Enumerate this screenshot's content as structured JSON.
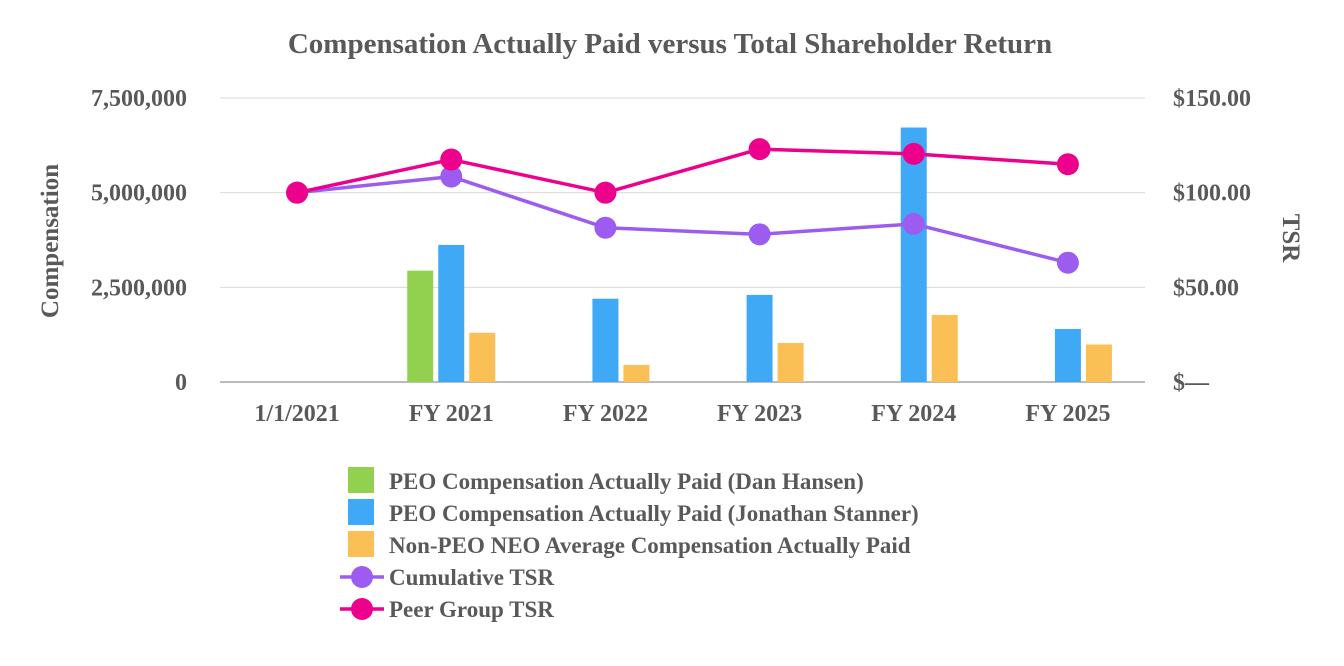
{
  "chart_data": {
    "type": "bar",
    "title": "Compensation Actually Paid versus Total Shareholder Return",
    "categories": [
      "1/1/2021",
      "FY 2021",
      "FY 2022",
      "FY 2023",
      "FY 2024",
      "FY 2025"
    ],
    "ylabel": "Compensation",
    "y2label": "TSR",
    "ylim": [
      0,
      7500000
    ],
    "y2lim": [
      0,
      150
    ],
    "yticks": [
      0,
      2500000,
      5000000,
      7500000
    ],
    "ytick_labels": [
      "0",
      "2,500,000",
      "5,000,000",
      "7,500,000"
    ],
    "y2ticks": [
      0,
      50,
      100,
      150
    ],
    "y2tick_labels": [
      "$—",
      "$50.00",
      "$100.00",
      "$150.00"
    ],
    "grid": true,
    "legend_position": "bottom",
    "bar_series": [
      {
        "name": "PEO Compensation Actually Paid (Dan Hansen)",
        "color": "#92d050",
        "values": [
          null,
          2940000,
          null,
          null,
          null,
          null
        ]
      },
      {
        "name": "PEO Compensation Actually Paid (Jonathan Stanner)",
        "color": "#3fa9f5",
        "values": [
          null,
          3620000,
          2200000,
          2300000,
          6720000,
          1400000
        ]
      },
      {
        "name": "Non-PEO NEO Average Compensation Actually Paid",
        "color": "#fac055",
        "values": [
          null,
          1300000,
          450000,
          1030000,
          1770000,
          990000
        ]
      }
    ],
    "line_series": [
      {
        "name": "Cumulative TSR",
        "color": "#9d5cf0",
        "values": [
          100,
          108.5,
          81.5,
          78,
          83.5,
          63
        ]
      },
      {
        "name": "Peer Group TSR",
        "color": "#ec008c",
        "values": [
          100,
          117.5,
          100,
          123,
          120.5,
          115
        ]
      }
    ]
  }
}
